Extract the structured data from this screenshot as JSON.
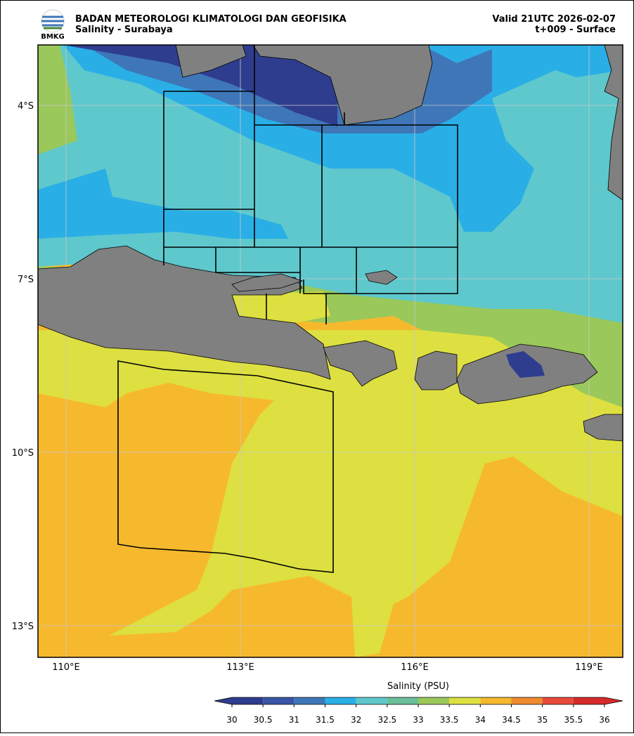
{
  "header": {
    "logo_text": "BMKG",
    "title": "BADAN METEOROLOGI KLIMATOLOGI DAN GEOFISIKA",
    "subtitle": "Salinity - Surabaya",
    "valid": "Valid 21UTC 2026-02-07",
    "forecast": "t+009 - Surface"
  },
  "map": {
    "lat_labels": [
      "4°S",
      "7°S",
      "10°S",
      "13°S"
    ],
    "lon_labels": [
      "110°E",
      "113°E",
      "116°E",
      "119°E"
    ]
  },
  "colorbar": {
    "label": "Salinity (PSU)",
    "ticks": [
      30,
      30.5,
      31,
      31.5,
      32,
      32.5,
      33,
      33.5,
      34,
      34.5,
      35,
      35.5,
      36
    ],
    "colors": [
      "#2f3d8f",
      "#3a56a6",
      "#3e76b8",
      "#2aaee6",
      "#5ec8cc",
      "#6bbf9a",
      "#9ac85a",
      "#dde040",
      "#f6b92e",
      "#ef8a30",
      "#e84a3a",
      "#d62b2b"
    ]
  }
}
